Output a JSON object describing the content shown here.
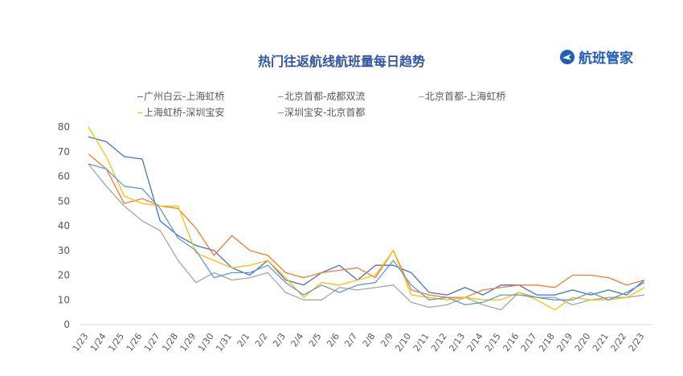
{
  "title": "热门往返航线航班量每日趋势",
  "brand": {
    "name": "航班管家",
    "icon": "airplane-logo-icon",
    "color": "#1f5fb5"
  },
  "chart_data": {
    "type": "line",
    "title": "热门往返航线航班量每日趋势",
    "xlabel": "",
    "ylabel": "",
    "ylim": [
      0,
      80
    ],
    "yticks": [
      "0",
      "10",
      "20",
      "30",
      "40",
      "50",
      "60",
      "70",
      "80"
    ],
    "grid": false,
    "legend_position": "top",
    "categories": [
      "1/23",
      "1/24",
      "1/25",
      "1/26",
      "1/27",
      "1/28",
      "1/29",
      "1/30",
      "1/31",
      "2/1",
      "2/2",
      "2/3",
      "2/4",
      "2/5",
      "2/6",
      "2/7",
      "2/8",
      "2/9",
      "2/10",
      "2/11",
      "2/12",
      "2/13",
      "2/14",
      "2/15",
      "2/16",
      "2/17",
      "2/18",
      "2/19",
      "2/20",
      "2/21",
      "2/22",
      "2/23"
    ],
    "series": [
      {
        "name": "广州白云-上海虹桥",
        "color": "#4472c4",
        "values": [
          76,
          74,
          68,
          67,
          42,
          36,
          32,
          30,
          23,
          20,
          26,
          18,
          16,
          21,
          24,
          18,
          24,
          24,
          21,
          13,
          12,
          15,
          12,
          16,
          16,
          12,
          12,
          14,
          12,
          14,
          12,
          18
        ]
      },
      {
        "name": "北京首都-成都双流",
        "color": "#ed7d31",
        "values": [
          69,
          63,
          49,
          51,
          48,
          47,
          39,
          28,
          36,
          30,
          28,
          21,
          19,
          21,
          22,
          23,
          19,
          30,
          14,
          12,
          11,
          11,
          14,
          15,
          16,
          16,
          15,
          20,
          20,
          19,
          16,
          18
        ]
      },
      {
        "name": "北京首都-上海虹桥",
        "color": "#a5a5a5",
        "values": [
          65,
          56,
          48,
          42,
          38,
          26,
          17,
          21,
          18,
          19,
          21,
          13,
          10,
          10,
          15,
          14,
          15,
          16,
          9,
          7,
          8,
          11,
          8,
          6,
          13,
          11,
          11,
          8,
          10,
          11,
          11,
          12
        ]
      },
      {
        "name": "上海虹桥-深圳宝安",
        "color": "#ffc000",
        "values": [
          80,
          68,
          52,
          49,
          48,
          48,
          29,
          26,
          23,
          24,
          26,
          19,
          11,
          17,
          16,
          18,
          20,
          30,
          12,
          11,
          10,
          11,
          10,
          10,
          13,
          10,
          6,
          11,
          10,
          10,
          11,
          15
        ]
      },
      {
        "name": "深圳宝安-北京首都",
        "color": "#5b9bd5",
        "values": [
          65,
          63,
          56,
          55,
          47,
          35,
          30,
          19,
          21,
          21,
          24,
          17,
          12,
          16,
          13,
          16,
          17,
          26,
          16,
          10,
          11,
          8,
          9,
          12,
          12,
          11,
          10,
          10,
          13,
          10,
          13,
          17
        ]
      }
    ]
  }
}
